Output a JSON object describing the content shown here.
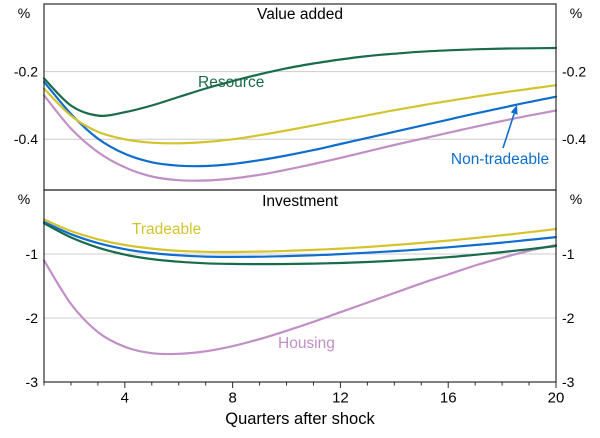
{
  "figure": {
    "xlabel": "Quarters after shock",
    "xlim": [
      1,
      20
    ],
    "x_major_ticks": [
      4,
      8,
      12,
      16,
      20
    ],
    "x_minor_step": 1,
    "unit_symbol": "%",
    "grid_color": "#cccccc",
    "frame_color": "#2b2b2b",
    "text_color": "#000000"
  },
  "chart_data": [
    {
      "type": "line",
      "panel": "top",
      "title": "Value added",
      "unit": "%",
      "ylim": [
        -0.55,
        0
      ],
      "yticks": [
        -0.2,
        -0.4
      ],
      "grid": true,
      "x": [
        1,
        2,
        3,
        4,
        5,
        6,
        7,
        8,
        9,
        10,
        11,
        12,
        13,
        14,
        15,
        16,
        17,
        18,
        19,
        20
      ],
      "series": [
        {
          "name": "Resource",
          "color": "#1a6b4b",
          "values": [
            -0.22,
            -0.3,
            -0.33,
            -0.32,
            -0.3,
            -0.275,
            -0.25,
            -0.228,
            -0.208,
            -0.19,
            -0.176,
            -0.164,
            -0.154,
            -0.147,
            -0.141,
            -0.137,
            -0.134,
            -0.132,
            -0.131,
            -0.13
          ]
        },
        {
          "name": "Tradeable",
          "color": "#d3c42e",
          "values": [
            -0.25,
            -0.33,
            -0.378,
            -0.4,
            -0.41,
            -0.412,
            -0.408,
            -0.4,
            -0.388,
            -0.374,
            -0.359,
            -0.344,
            -0.329,
            -0.314,
            -0.3,
            -0.287,
            -0.274,
            -0.262,
            -0.251,
            -0.24
          ]
        },
        {
          "name": "Non-tradeable",
          "color": "#0f6ecd",
          "values": [
            -0.23,
            -0.325,
            -0.398,
            -0.443,
            -0.468,
            -0.478,
            -0.479,
            -0.473,
            -0.462,
            -0.448,
            -0.432,
            -0.414,
            -0.396,
            -0.378,
            -0.36,
            -0.342,
            -0.324,
            -0.307,
            -0.29,
            -0.274
          ]
        },
        {
          "name": "Housing",
          "color": "#c08fc6",
          "values": [
            -0.27,
            -0.368,
            -0.438,
            -0.483,
            -0.51,
            -0.521,
            -0.522,
            -0.516,
            -0.505,
            -0.49,
            -0.473,
            -0.455,
            -0.436,
            -0.417,
            -0.399,
            -0.381,
            -0.363,
            -0.346,
            -0.33,
            -0.315
          ]
        }
      ]
    },
    {
      "type": "line",
      "panel": "bottom",
      "title": "Investment",
      "unit": "%",
      "ylim": [
        -3,
        0
      ],
      "yticks": [
        -1,
        -2,
        -3
      ],
      "grid": true,
      "x": [
        1,
        2,
        3,
        4,
        5,
        6,
        7,
        8,
        9,
        10,
        11,
        12,
        13,
        14,
        15,
        16,
        17,
        18,
        19,
        20
      ],
      "series": [
        {
          "name": "Resource",
          "color": "#1a6b4b",
          "values": [
            -0.52,
            -0.74,
            -0.9,
            -1.01,
            -1.08,
            -1.12,
            -1.145,
            -1.155,
            -1.158,
            -1.156,
            -1.15,
            -1.14,
            -1.125,
            -1.105,
            -1.08,
            -1.05,
            -1.012,
            -0.97,
            -0.925,
            -0.875
          ]
        },
        {
          "name": "Tradeable",
          "color": "#d3c42e",
          "values": [
            -0.46,
            -0.64,
            -0.77,
            -0.86,
            -0.915,
            -0.95,
            -0.965,
            -0.968,
            -0.963,
            -0.952,
            -0.936,
            -0.915,
            -0.89,
            -0.86,
            -0.827,
            -0.79,
            -0.75,
            -0.707,
            -0.66,
            -0.61
          ]
        },
        {
          "name": "Non-tradeable",
          "color": "#0f6ecd",
          "values": [
            -0.5,
            -0.69,
            -0.83,
            -0.925,
            -0.985,
            -1.02,
            -1.04,
            -1.045,
            -1.042,
            -1.033,
            -1.02,
            -1.002,
            -0.98,
            -0.955,
            -0.927,
            -0.895,
            -0.86,
            -0.822,
            -0.78,
            -0.736
          ]
        },
        {
          "name": "Housing",
          "color": "#c08fc6",
          "values": [
            -1.1,
            -1.78,
            -2.22,
            -2.45,
            -2.55,
            -2.56,
            -2.52,
            -2.44,
            -2.33,
            -2.2,
            -2.06,
            -1.91,
            -1.76,
            -1.61,
            -1.46,
            -1.32,
            -1.18,
            -1.06,
            -0.95,
            -0.86
          ]
        }
      ]
    }
  ]
}
